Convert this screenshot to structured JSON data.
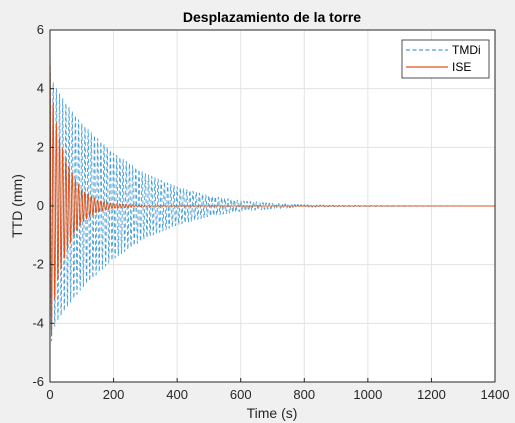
{
  "chart_data": {
    "type": "line",
    "title": "Desplazamiento de la torre",
    "xlabel": "Time (s)",
    "ylabel": "TTD (mm)",
    "xlim": [
      0,
      1400
    ],
    "ylim": [
      -6,
      6
    ],
    "xticks": [
      0,
      200,
      400,
      600,
      800,
      1000,
      1200,
      1400
    ],
    "yticks": [
      -6,
      -4,
      -2,
      0,
      2,
      4,
      6
    ],
    "grid": true,
    "legend_position": "top-right",
    "series": [
      {
        "name": "TMDi",
        "style": "dashed",
        "color": "#4a9fd0",
        "period_s": 10,
        "envelope": {
          "x": [
            0,
            10,
            25,
            50,
            100,
            150,
            200,
            300,
            400,
            500,
            600,
            700,
            800,
            900,
            1400
          ],
          "y": [
            5.0,
            4.2,
            3.9,
            3.5,
            2.8,
            2.3,
            1.8,
            1.1,
            0.65,
            0.35,
            0.18,
            0.09,
            0.04,
            0.02,
            0
          ]
        }
      },
      {
        "name": "ISE",
        "style": "solid",
        "color": "#d9541e",
        "period_s": 10,
        "envelope": {
          "x": [
            0,
            5,
            10,
            25,
            50,
            75,
            100,
            150,
            200,
            300,
            1400
          ],
          "y": [
            5.0,
            4.4,
            3.5,
            2.5,
            1.6,
            1.0,
            0.55,
            0.2,
            0.08,
            0.01,
            0
          ]
        }
      }
    ]
  }
}
